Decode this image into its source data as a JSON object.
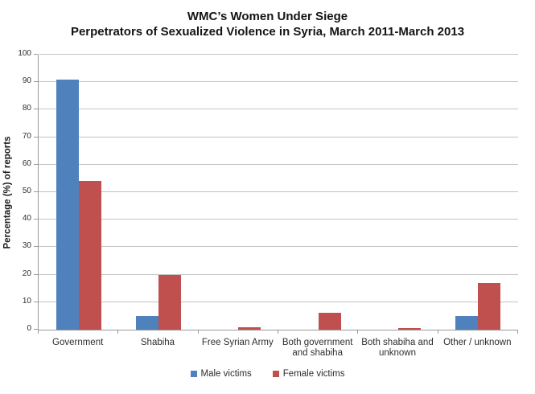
{
  "chart": {
    "title_line1": "WMC’s Women Under Siege",
    "title_line2": "Perpetrators of Sexualized Violence in Syria, March 2011-March 2013"
  },
  "chart_data": {
    "type": "bar",
    "title": "WMC’s Women Under Siege",
    "subtitle": "Perpetrators of Sexualized Violence in Syria, March 2011-March 2013",
    "categories": [
      "Government",
      "Shabiha",
      "Free Syrian Army",
      "Both government and shabiha",
      "Both shabiha and unknown",
      "Other / unknown"
    ],
    "series": [
      {
        "name": "Male victims",
        "color": "#4F81BD",
        "values": [
          91,
          5,
          0,
          0,
          0,
          5
        ]
      },
      {
        "name": "Female victims",
        "color": "#C0504D",
        "values": [
          54,
          20,
          1,
          6,
          0.5,
          17
        ]
      }
    ],
    "ylabel": "Percentage (%) of reports",
    "xlabel": "",
    "ylim": [
      0,
      100
    ],
    "yticks": [
      0,
      10,
      20,
      30,
      40,
      50,
      60,
      70,
      80,
      90,
      100
    ],
    "grid": true,
    "legend_position": "bottom",
    "colors": {
      "male_bar": "#4F81BD",
      "female_bar": "#C0504D",
      "gridline": "#c3c3c3",
      "axis": "#9a9a9a",
      "text": "#2e2e2e"
    }
  }
}
